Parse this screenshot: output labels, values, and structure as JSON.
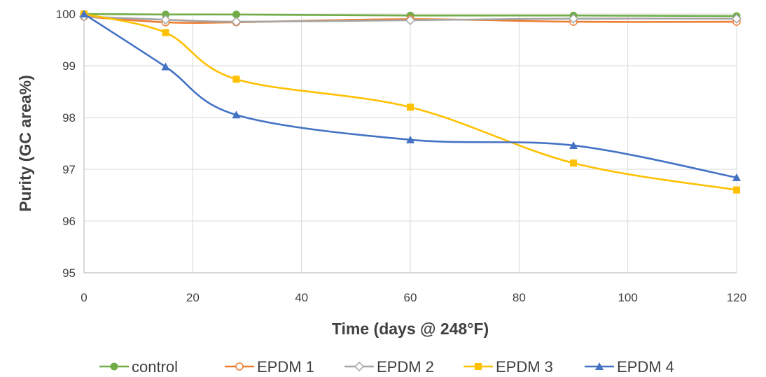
{
  "chart_data": {
    "type": "line",
    "xlabel": "Time (days @ 248°F)",
    "ylabel": "Purity (GC area%)",
    "xlim": [
      0,
      120
    ],
    "ylim": [
      95,
      100
    ],
    "x_ticks": [
      "0",
      "20",
      "40",
      "60",
      "80",
      "100",
      "120"
    ],
    "y_ticks": [
      "95",
      "96",
      "97",
      "98",
      "99",
      "100"
    ],
    "grid": true,
    "smoothed": true,
    "legend_position": "bottom",
    "series": [
      {
        "name": "control",
        "color": "#70ad47",
        "marker": "circle-filled",
        "x": [
          0,
          15,
          28,
          60,
          90,
          120
        ],
        "y": [
          100.0,
          99.99,
          99.99,
          99.97,
          99.97,
          99.96
        ]
      },
      {
        "name": "EPDM 1",
        "color": "#ed7d31",
        "marker": "circle-open",
        "x": [
          0,
          15,
          28,
          60,
          90,
          120
        ],
        "y": [
          99.95,
          99.84,
          99.84,
          99.9,
          99.85,
          99.85
        ]
      },
      {
        "name": "EPDM 2",
        "color": "#a5a5a5",
        "marker": "diamond",
        "x": [
          0,
          15,
          28,
          60,
          90,
          120
        ],
        "y": [
          99.95,
          99.89,
          99.85,
          99.88,
          99.91,
          99.91
        ]
      },
      {
        "name": "EPDM 3",
        "color": "#ffc000",
        "marker": "square",
        "x": [
          0,
          15,
          28,
          60,
          90,
          120
        ],
        "y": [
          100.0,
          99.64,
          98.74,
          98.2,
          97.12,
          96.6
        ]
      },
      {
        "name": "EPDM 4",
        "color": "#4472c4",
        "marker": "triangle",
        "x": [
          0,
          15,
          28,
          60,
          90,
          120
        ],
        "y": [
          100.0,
          98.98,
          98.05,
          97.57,
          97.46,
          96.84
        ]
      }
    ]
  }
}
